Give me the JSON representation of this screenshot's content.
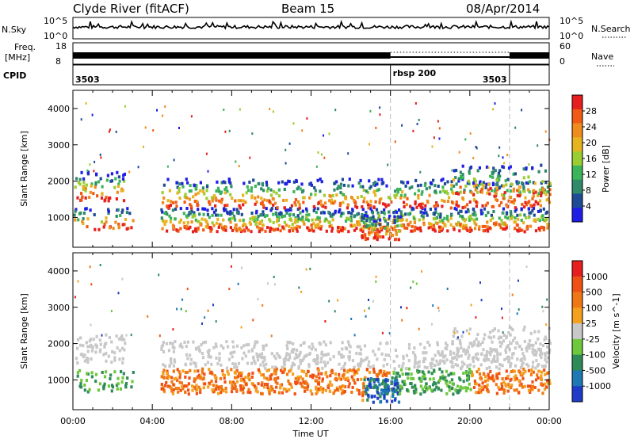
{
  "header": {
    "station": "Clyde River (fitACF)",
    "beam": "Beam 15",
    "date": "08/Apr/2014"
  },
  "strip_labels": {
    "nsky": "N.Sky",
    "nsky_top": "10^5",
    "nsky_bottom": "10^0",
    "nsearch": "N.Search",
    "nsearch_top": "10^5",
    "nsearch_bottom": "10^0",
    "freq": "Freq.",
    "freq_unit": "[MHz]",
    "freq_top": "18",
    "freq_bottom": "8",
    "nave": "Nave",
    "nave_top": "60",
    "nave_bottom": "0",
    "cpid": "CPID"
  },
  "cpid_segments": [
    {
      "label": "3503",
      "start": 0,
      "end": 16
    },
    {
      "label": "rbsp 200",
      "start": 16,
      "end": 22
    },
    {
      "label": "3503",
      "start": 22,
      "end": 24
    }
  ],
  "x_axis": {
    "label": "Time UT",
    "ticks": [
      "00:00",
      "04:00",
      "08:00",
      "12:00",
      "16:00",
      "20:00",
      "00:00"
    ],
    "range_hours": [
      0,
      24
    ]
  },
  "chart_data": [
    {
      "type": "heatmap",
      "title": "",
      "xlabel": "",
      "ylabel": "Slant Range [km]",
      "y_ticks": [
        "1000",
        "2000",
        "3000",
        "4000"
      ],
      "ylim": [
        180,
        4500
      ],
      "colorbar_label": "Power [dB]",
      "colorbar_ticks": [
        "4",
        "8",
        "12",
        "16",
        "20",
        "24",
        "28"
      ],
      "colorbar_range": [
        0,
        32
      ],
      "colors": [
        "#1e1ee6",
        "#1e4b96",
        "#2f8a6a",
        "#3cb45a",
        "#9acd32",
        "#e6b41e",
        "#f08c1e",
        "#f05a14",
        "#e61e1e"
      ]
    },
    {
      "type": "heatmap",
      "title": "",
      "xlabel": "Time UT",
      "ylabel": "Slant Range [km]",
      "y_ticks": [
        "1000",
        "2000",
        "3000",
        "4000"
      ],
      "ylim": [
        180,
        4500
      ],
      "colorbar_label": "Velocity [m s^-1]",
      "colorbar_ticks": [
        "1000",
        "500",
        "100",
        "25",
        "-25",
        "-100",
        "-500",
        "-1000"
      ],
      "colors": [
        "#1e3cc8",
        "#1e78b4",
        "#2e8b57",
        "#6dc83c",
        "#c8c8c8",
        "#f5a01e",
        "#f07814",
        "#f05014",
        "#e61e1e"
      ]
    }
  ]
}
